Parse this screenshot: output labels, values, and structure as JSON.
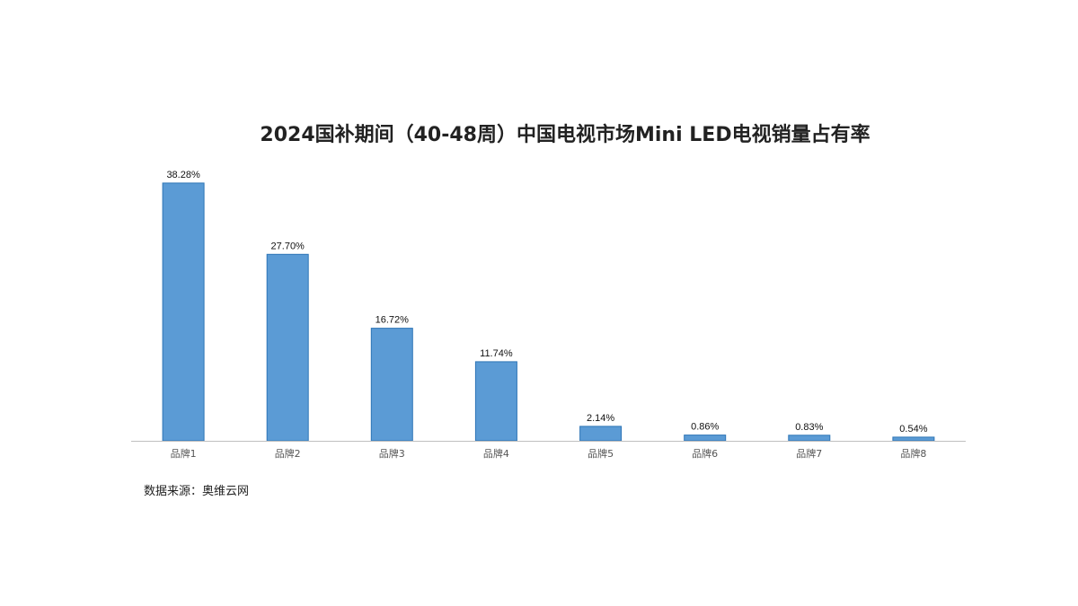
{
  "chart_data": {
    "type": "bar",
    "title": "2024国补期间（40-48周）中国电视市场Mini LED电视销量占有率",
    "categories": [
      "品牌1",
      "品牌2",
      "品牌3",
      "品牌4",
      "品牌5",
      "品牌6",
      "品牌7",
      "品牌8"
    ],
    "values": [
      38.28,
      27.7,
      16.72,
      11.74,
      2.14,
      0.86,
      0.83,
      0.54
    ],
    "value_labels": [
      "38.28%",
      "27.70%",
      "16.72%",
      "11.74%",
      "2.14%",
      "0.86%",
      "0.83%",
      "0.54%"
    ],
    "xlabel": "",
    "ylabel": "",
    "ylim": [
      0,
      40
    ],
    "grid": false,
    "legend": "none",
    "bar_color": "#5b9bd5",
    "bar_edge_color": "#2e75b6",
    "axis_color": "#bfbfbf"
  },
  "source_note": "数据来源：奥维云网"
}
